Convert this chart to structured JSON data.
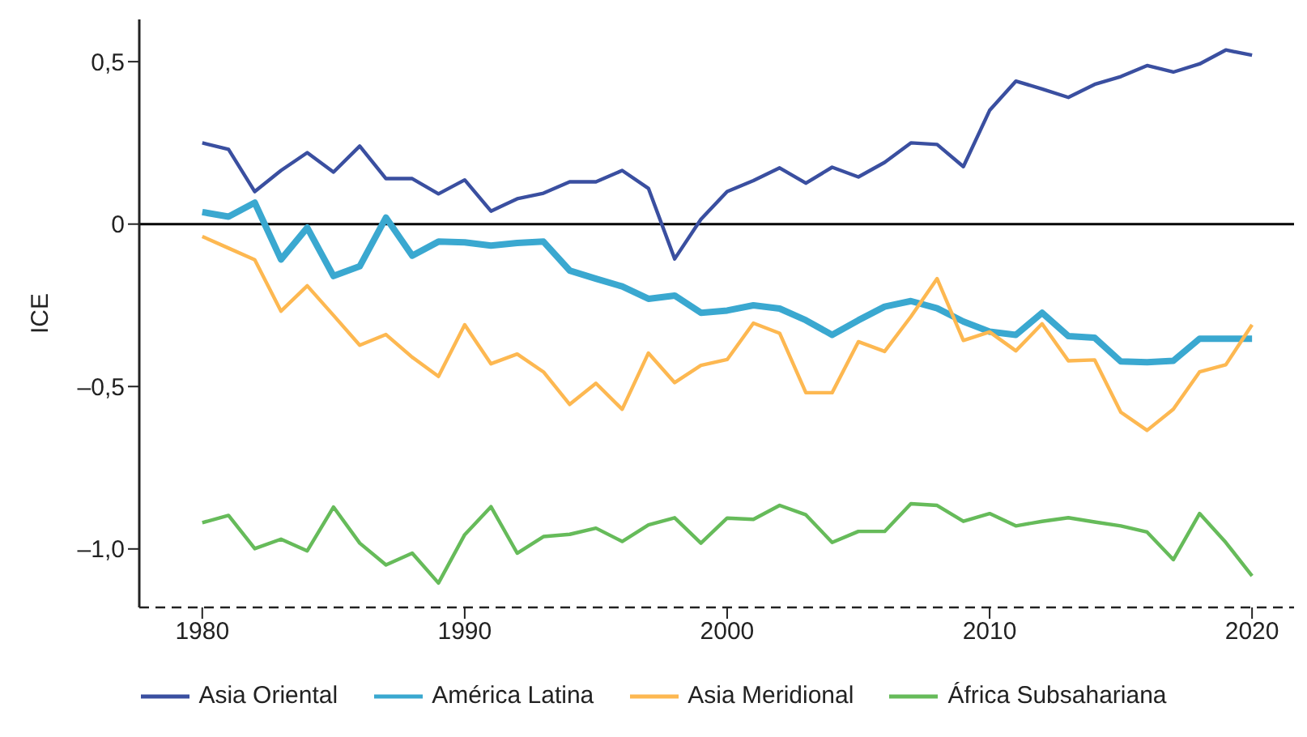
{
  "chart_data": {
    "type": "line",
    "ylabel": "ICE",
    "x": [
      1980,
      1981,
      1982,
      1983,
      1984,
      1985,
      1986,
      1987,
      1988,
      1989,
      1990,
      1991,
      1992,
      1993,
      1994,
      1995,
      1996,
      1997,
      1998,
      1999,
      2000,
      2001,
      2002,
      2003,
      2004,
      2005,
      2006,
      2007,
      2008,
      2009,
      2010,
      2011,
      2012,
      2013,
      2014,
      2015,
      2016,
      2017,
      2018,
      2019,
      2020
    ],
    "series": [
      {
        "name": "Asia Oriental",
        "color": "#3a4fa0",
        "values": [
          0.25,
          0.23,
          0.1,
          0.165,
          0.22,
          0.16,
          0.24,
          0.14,
          0.14,
          0.093,
          0.136,
          0.04,
          0.078,
          0.095,
          0.13,
          0.13,
          0.165,
          0.11,
          -0.107,
          0.015,
          0.1,
          0.134,
          0.173,
          0.126,
          0.175,
          0.145,
          0.19,
          0.25,
          0.245,
          0.177,
          0.35,
          0.44,
          0.416,
          0.39,
          0.43,
          0.454,
          0.488,
          0.468,
          0.493,
          0.536,
          0.52
        ]
      },
      {
        "name": "América Latina",
        "color": "#3aa8d0",
        "values": [
          0.037,
          0.023,
          0.066,
          -0.109,
          -0.011,
          -0.16,
          -0.13,
          0.02,
          -0.097,
          -0.054,
          -0.056,
          -0.066,
          -0.058,
          -0.054,
          -0.143,
          -0.168,
          -0.192,
          -0.23,
          -0.22,
          -0.273,
          -0.266,
          -0.25,
          -0.26,
          -0.296,
          -0.341,
          -0.296,
          -0.254,
          -0.237,
          -0.259,
          -0.3,
          -0.331,
          -0.341,
          -0.273,
          -0.345,
          -0.35,
          -0.423,
          -0.425,
          -0.421,
          -0.353,
          -0.353,
          -0.353
        ]
      },
      {
        "name": "Asia Meridional",
        "color": "#fdb851",
        "values": [
          -0.038,
          -0.074,
          -0.11,
          -0.268,
          -0.19,
          -0.281,
          -0.373,
          -0.34,
          -0.41,
          -0.469,
          -0.31,
          -0.43,
          -0.4,
          -0.455,
          -0.555,
          -0.49,
          -0.57,
          -0.397,
          -0.488,
          -0.435,
          -0.417,
          -0.305,
          -0.336,
          -0.519,
          -0.519,
          -0.362,
          -0.392,
          -0.285,
          -0.168,
          -0.358,
          -0.332,
          -0.39,
          -0.307,
          -0.421,
          -0.418,
          -0.579,
          -0.635,
          -0.57,
          -0.455,
          -0.433,
          -0.31
        ]
      },
      {
        "name": "África Subsahariana",
        "color": "#66bb5a",
        "values": [
          -0.919,
          -0.897,
          -0.999,
          -0.97,
          -1.006,
          -0.871,
          -0.982,
          -1.049,
          -1.013,
          -1.105,
          -0.956,
          -0.87,
          -1.013,
          -0.962,
          -0.955,
          -0.936,
          -0.977,
          -0.926,
          -0.904,
          -0.982,
          -0.905,
          -0.909,
          -0.866,
          -0.895,
          -0.98,
          -0.946,
          -0.946,
          -0.861,
          -0.866,
          -0.915,
          -0.891,
          -0.929,
          -0.915,
          -0.904,
          -0.917,
          -0.929,
          -0.948,
          -1.033,
          -0.891,
          -0.98,
          -1.083
        ]
      }
    ],
    "xlim": [
      1977.6,
      2021.6
    ],
    "xticks": [
      1980,
      1990,
      2000,
      2010,
      2020
    ],
    "ylim": [
      -1.18,
      0.63
    ],
    "yticks": [
      {
        "value": 0.5,
        "label": "0,5"
      },
      {
        "value": 0,
        "label": "0"
      },
      {
        "value": -0.5,
        "label": "–0,5"
      },
      {
        "value": -1,
        "label": "–1,0"
      }
    ],
    "ref_lines": [
      {
        "axis": "y",
        "value": 0,
        "color": "#000000"
      }
    ],
    "grid": false,
    "legend": "bottom",
    "marker": "none",
    "line_style": "solid"
  }
}
